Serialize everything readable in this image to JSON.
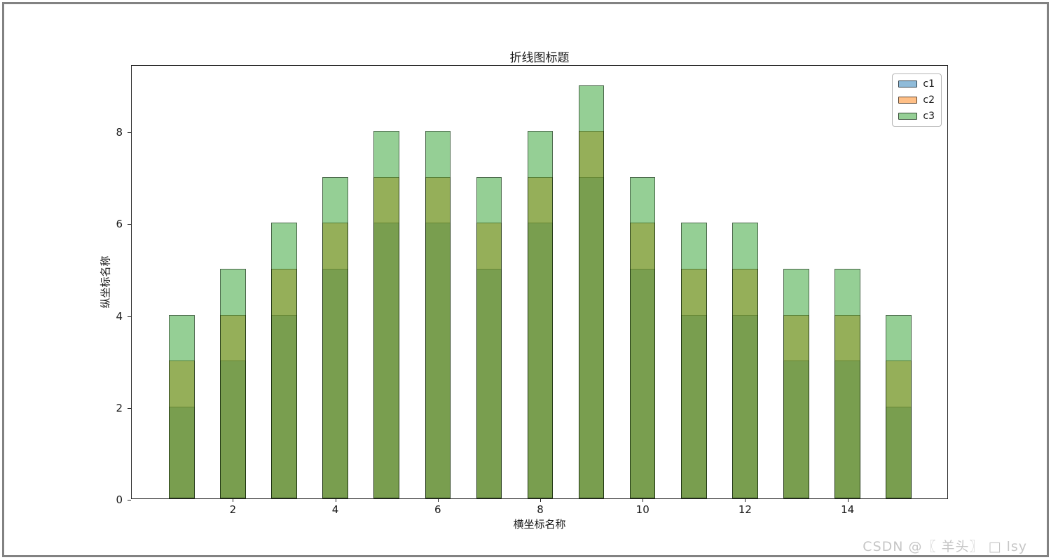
{
  "watermark": {
    "text": "CSDN @〖 羊头〗 □ lsy",
    "color": "#c6c6c6"
  },
  "window": {
    "border_color": "#828282"
  },
  "chart_data": {
    "type": "bar",
    "title": "折线图标题",
    "xlabel": "横坐标名称",
    "ylabel": "纵坐标名称",
    "x": [
      1,
      2,
      3,
      4,
      5,
      6,
      7,
      8,
      9,
      10,
      11,
      12,
      13,
      14,
      15
    ],
    "series": [
      {
        "name": "c1",
        "color": "#1f77b4",
        "values": [
          2,
          3,
          4,
          5,
          6,
          6,
          5,
          6,
          7,
          5,
          4,
          4,
          3,
          3,
          2
        ]
      },
      {
        "name": "c2",
        "color": "#ff7f0e",
        "values": [
          3,
          4,
          5,
          6,
          7,
          7,
          6,
          7,
          8,
          6,
          5,
          5,
          4,
          4,
          3
        ]
      },
      {
        "name": "c3",
        "color": "#2ca02c",
        "values": [
          4,
          5,
          6,
          7,
          8,
          8,
          7,
          8,
          9,
          7,
          6,
          6,
          5,
          5,
          4
        ]
      }
    ],
    "alpha": 0.5,
    "bar_width": 0.5,
    "overlapping": true,
    "xticks": [
      2,
      4,
      6,
      8,
      10,
      12,
      14
    ],
    "yticks": [
      0,
      2,
      4,
      6,
      8
    ],
    "xlim": [
      0.025,
      15.975
    ],
    "ylim": [
      0,
      9.45
    ],
    "grid": false,
    "legend": {
      "position": "upper-right",
      "labels": [
        "c1",
        "c2",
        "c3"
      ]
    }
  }
}
